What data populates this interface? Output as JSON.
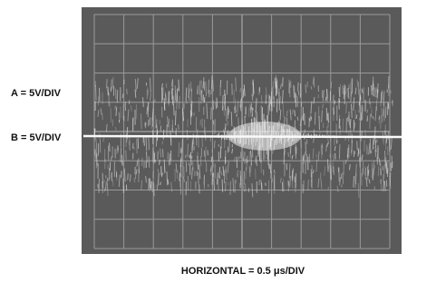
{
  "labels": {
    "channel_a": "A = 5V/DIV",
    "channel_b": "B = 5V/DIV",
    "horizontal": "HORIZONTAL = 0.5 μs/DIV"
  }
}
